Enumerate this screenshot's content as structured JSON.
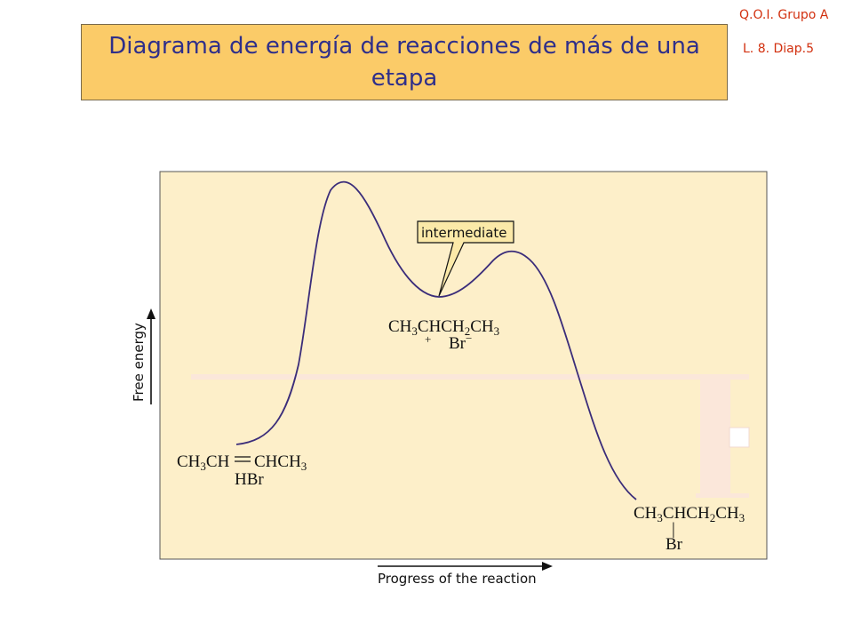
{
  "header": {
    "course": "Q.O.I. Grupo A",
    "lesson": "L. 8. Diap.5",
    "title": "Diagrama de energía de reacciones de más de una etapa"
  },
  "diagram": {
    "y_axis_label": "Free energy",
    "x_axis_label": "Progress of the reaction",
    "callout": "intermediate",
    "reactant": {
      "line1": [
        "CH",
        "3",
        "CH",
        "CHCH",
        "3"
      ],
      "line2": "HBr"
    },
    "intermediate": {
      "line1": [
        "CH",
        "3",
        "CHCH",
        "2",
        "CH",
        "3"
      ],
      "plus": "+",
      "line2": "Br",
      "minus": "−"
    },
    "product": {
      "line1": [
        "CH",
        "3",
        "CHCH",
        "2",
        "CH",
        "3"
      ],
      "bond": "|",
      "line2": "Br"
    },
    "colors": {
      "panel": "#fdefc9",
      "curve": "#3b2d7a",
      "title_box": "#fbcb68",
      "title_text": "#2f2f8a",
      "corner_text": "#d2300f"
    }
  }
}
